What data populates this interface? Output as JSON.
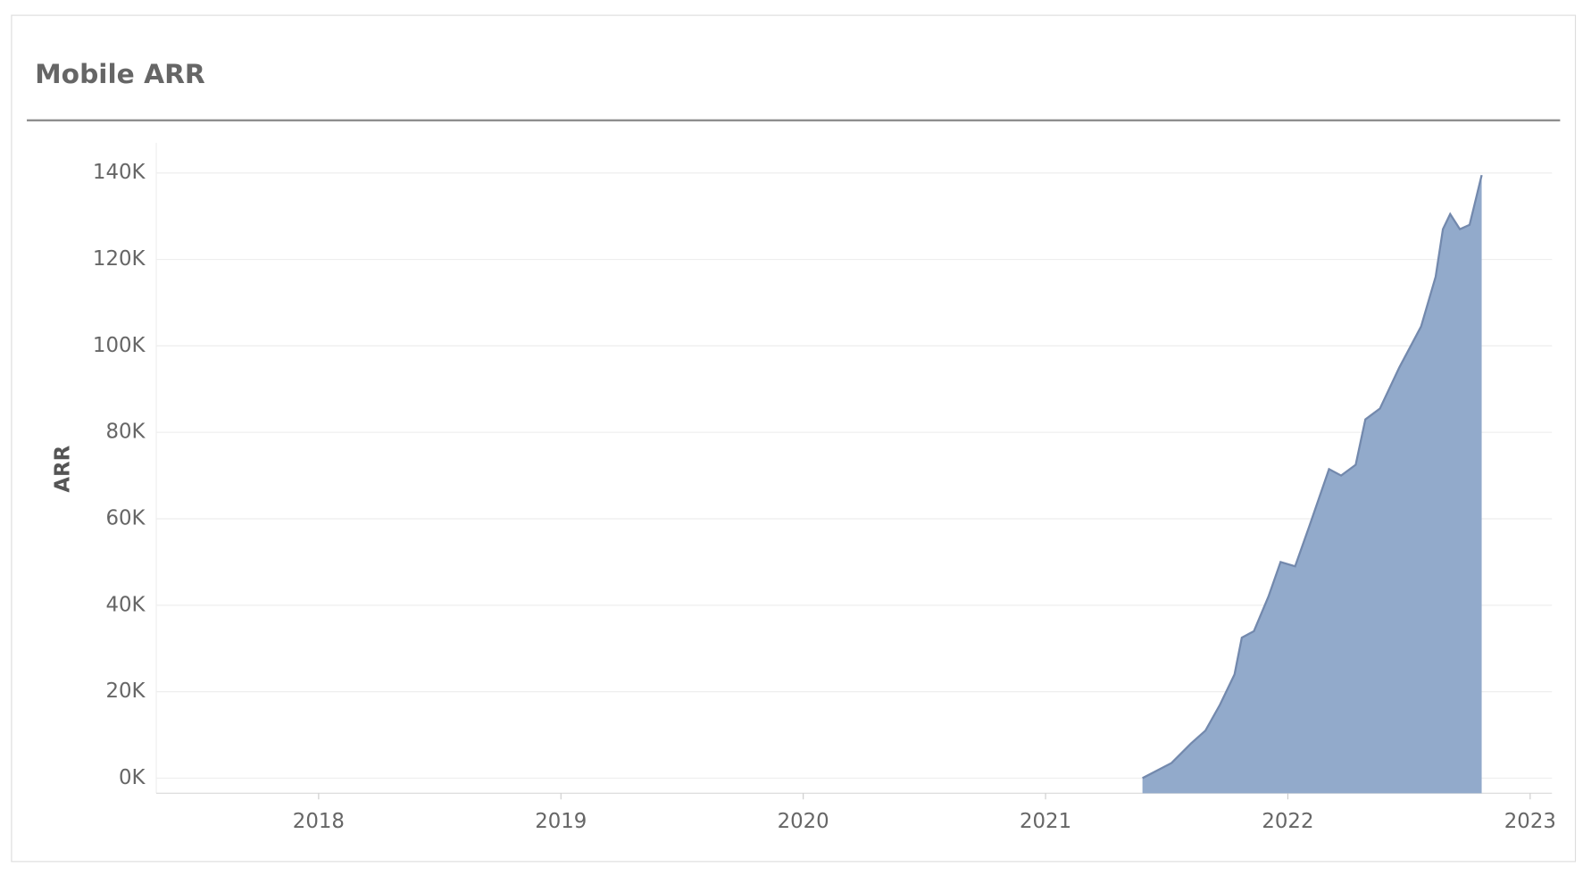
{
  "chart_data": {
    "type": "area",
    "title": "Mobile ARR",
    "y_label": "ARR",
    "color": "#92aacb",
    "line_color": "#7389ad",
    "grid": true,
    "x": [
      2021.4,
      2021.52,
      2021.6,
      2021.66,
      2021.72,
      2021.78,
      2021.81,
      2021.86,
      2021.92,
      2021.97,
      2022.03,
      2022.09,
      2022.17,
      2022.22,
      2022.28,
      2022.32,
      2022.38,
      2022.46,
      2022.55,
      2022.61,
      2022.64,
      2022.67,
      2022.71,
      2022.75,
      2022.8
    ],
    "values": [
      0,
      3500,
      8000,
      11000,
      17000,
      24000,
      32500,
      34000,
      42000,
      50000,
      49000,
      58500,
      71500,
      70000,
      72500,
      83000,
      85500,
      95000,
      104500,
      116000,
      127000,
      130500,
      127000,
      128000,
      139500
    ],
    "xlim": [
      2017.33,
      2023.09
    ],
    "xticks": [
      2018,
      2019,
      2020,
      2021,
      2022,
      2023
    ],
    "ylim": [
      -3500,
      147000
    ],
    "yticks": [
      {
        "value": 0,
        "label": "0K"
      },
      {
        "value": 20000,
        "label": "20K"
      },
      {
        "value": 40000,
        "label": "40K"
      },
      {
        "value": 60000,
        "label": "60K"
      },
      {
        "value": 80000,
        "label": "80K"
      },
      {
        "value": 100000,
        "label": "100K"
      },
      {
        "value": 120000,
        "label": "120K"
      },
      {
        "value": 140000,
        "label": "140K"
      }
    ]
  }
}
